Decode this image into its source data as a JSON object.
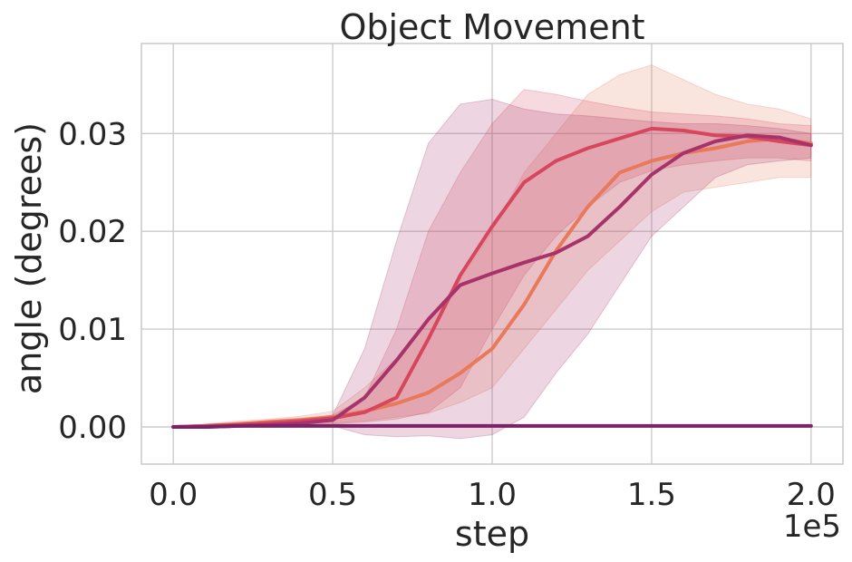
{
  "chart_data": {
    "type": "line",
    "title": "Object Movement",
    "xlabel": "step",
    "ylabel": "angle (degrees)",
    "x_offset_label": "1e5",
    "xlim": [
      -0.1,
      2.1
    ],
    "ylim": [
      -0.0038,
      0.0392
    ],
    "xticks": [
      0.0,
      0.5,
      1.0,
      1.5,
      2.0
    ],
    "xtick_labels": [
      "0.0",
      "0.5",
      "1.0",
      "1.5",
      "2.0"
    ],
    "yticks": [
      0.0,
      0.01,
      0.02,
      0.03
    ],
    "ytick_labels": [
      "0.00",
      "0.01",
      "0.02",
      "0.03"
    ],
    "grid": true,
    "legend": "none",
    "x": [
      0.0,
      0.1,
      0.2,
      0.3,
      0.4,
      0.5,
      0.6,
      0.7,
      0.8,
      0.9,
      1.0,
      1.1,
      1.2,
      1.3,
      1.4,
      1.5,
      1.6,
      1.7,
      1.8,
      1.9,
      2.0
    ],
    "series": [
      {
        "color": "#e8795a",
        "values": [
          0.0,
          0.0001,
          0.0003,
          0.0005,
          0.0007,
          0.001,
          0.0016,
          0.0024,
          0.0035,
          0.0055,
          0.008,
          0.0125,
          0.018,
          0.0225,
          0.026,
          0.0272,
          0.028,
          0.0285,
          0.0292,
          0.0295,
          0.029
        ],
        "band_low": [
          0.0,
          0.0,
          0.0001,
          0.0002,
          0.0003,
          0.0004,
          0.0006,
          0.001,
          0.0014,
          0.0025,
          0.004,
          0.008,
          0.012,
          0.016,
          0.019,
          0.022,
          0.024,
          0.0245,
          0.025,
          0.0255,
          0.0255
        ],
        "band_high": [
          0.0,
          0.0003,
          0.0006,
          0.0008,
          0.0011,
          0.0016,
          0.004,
          0.007,
          0.011,
          0.015,
          0.02,
          0.026,
          0.03,
          0.034,
          0.036,
          0.037,
          0.0355,
          0.034,
          0.033,
          0.0325,
          0.0315
        ]
      },
      {
        "color": "#d6475d",
        "values": [
          0.0,
          0.0001,
          0.0002,
          0.0004,
          0.0006,
          0.0009,
          0.0015,
          0.003,
          0.009,
          0.0155,
          0.0205,
          0.025,
          0.0272,
          0.0285,
          0.0295,
          0.0305,
          0.0303,
          0.0298,
          0.0297,
          0.0292,
          0.0288
        ],
        "band_low": [
          0.0,
          0.0,
          0.0,
          0.0001,
          0.0002,
          0.0003,
          0.0005,
          0.0008,
          0.0015,
          0.004,
          0.01,
          0.0155,
          0.0195,
          0.0225,
          0.025,
          0.0262,
          0.0268,
          0.0272,
          0.0275,
          0.0275,
          0.0272
        ],
        "band_high": [
          0.0,
          0.0002,
          0.0004,
          0.0007,
          0.0009,
          0.0012,
          0.003,
          0.01,
          0.02,
          0.026,
          0.031,
          0.0345,
          0.034,
          0.0333,
          0.0327,
          0.0322,
          0.032,
          0.0318,
          0.0315,
          0.031,
          0.0308
        ]
      },
      {
        "color": "#a6336a",
        "values": [
          0.0,
          0.0,
          0.0001,
          0.0002,
          0.0004,
          0.0007,
          0.003,
          0.0068,
          0.011,
          0.0145,
          0.0157,
          0.0168,
          0.0178,
          0.0195,
          0.0225,
          0.0258,
          0.028,
          0.0292,
          0.0298,
          0.0296,
          0.0288
        ],
        "band_low": [
          0.0,
          0.0,
          0.0,
          0.0,
          0.0,
          0.0001,
          -0.0008,
          -0.001,
          -0.0009,
          -0.0012,
          -0.0008,
          0.001,
          0.0055,
          0.0095,
          0.0145,
          0.0195,
          0.0225,
          0.0255,
          0.0268,
          0.0272,
          0.0275
        ],
        "band_high": [
          0.0,
          0.0001,
          0.0002,
          0.0004,
          0.0007,
          0.0012,
          0.008,
          0.019,
          0.029,
          0.033,
          0.0335,
          0.0325,
          0.032,
          0.0318,
          0.0315,
          0.0312,
          0.031,
          0.031,
          0.0308,
          0.0305,
          0.03
        ]
      },
      {
        "color": "#7b2366",
        "values": [
          0.0,
          0.0,
          0.0001,
          0.0001,
          0.0001,
          0.0001,
          0.0001,
          0.0001,
          0.0001,
          0.0001,
          0.0001,
          0.0001,
          0.0001,
          0.0001,
          0.0001,
          0.0001,
          0.0001,
          0.0001,
          0.0001,
          0.0001,
          0.0001
        ],
        "band_low": [
          0.0,
          0.0,
          0.0,
          0.0,
          0.0,
          0.0,
          0.0,
          0.0,
          0.0,
          0.0,
          0.0,
          0.0,
          0.0,
          0.0,
          0.0,
          0.0,
          0.0,
          0.0,
          0.0,
          0.0,
          0.0
        ],
        "band_high": [
          0.0,
          0.0001,
          0.0001,
          0.0002,
          0.0002,
          0.0002,
          0.0002,
          0.0002,
          0.0002,
          0.0002,
          0.0002,
          0.0002,
          0.0002,
          0.0002,
          0.0002,
          0.0002,
          0.0002,
          0.0002,
          0.0002,
          0.0002,
          0.0002
        ]
      }
    ]
  }
}
